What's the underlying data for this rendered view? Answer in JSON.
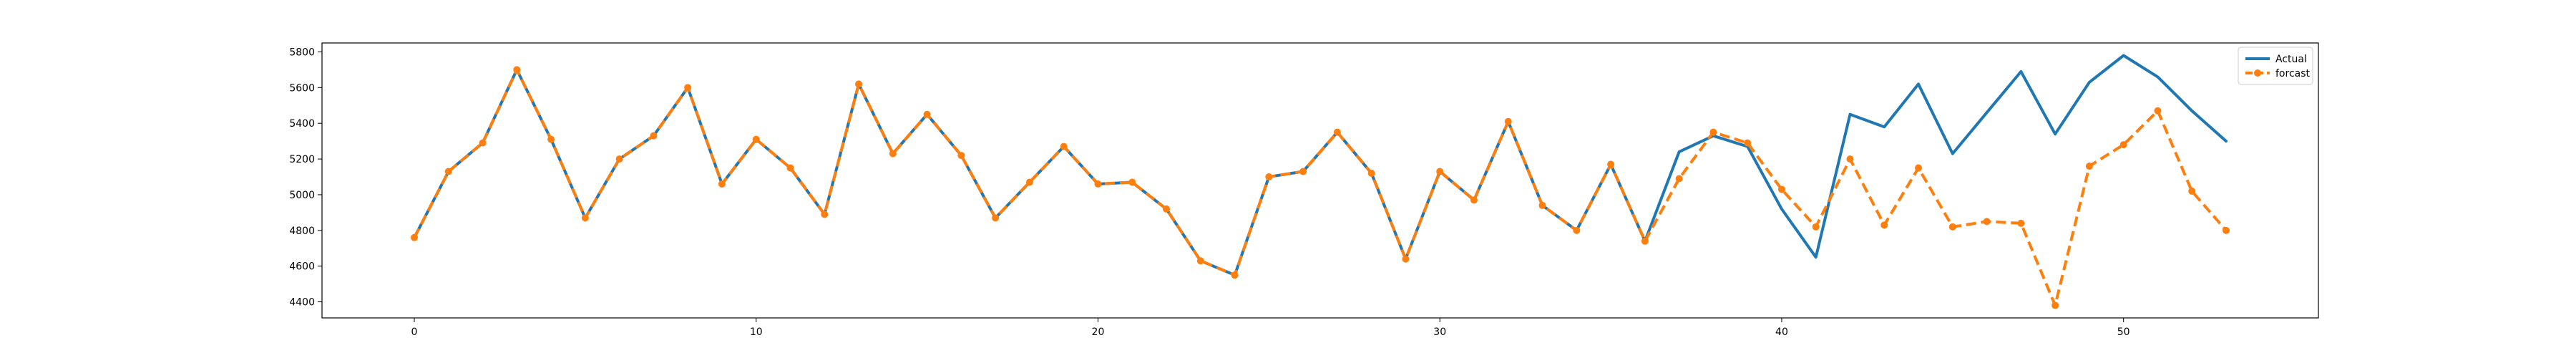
{
  "chart_data": {
    "type": "line",
    "x": [
      0,
      1,
      2,
      3,
      4,
      5,
      6,
      7,
      8,
      9,
      10,
      11,
      12,
      13,
      14,
      15,
      16,
      17,
      18,
      19,
      20,
      21,
      22,
      23,
      24,
      25,
      26,
      27,
      28,
      29,
      30,
      31,
      32,
      33,
      34,
      35,
      36,
      37,
      38,
      39,
      40,
      41,
      42,
      43,
      44,
      45,
      46,
      47,
      48,
      49,
      50,
      51,
      52,
      53
    ],
    "series": [
      {
        "name": "Actual",
        "color": "#1f77b4",
        "style": "solid",
        "values": [
          4760,
          5130,
          5290,
          5700,
          5310,
          4870,
          5200,
          5330,
          5600,
          5060,
          5310,
          5150,
          4890,
          5620,
          5230,
          5450,
          5220,
          4870,
          5070,
          5270,
          5060,
          5070,
          4920,
          4630,
          4550,
          5100,
          5130,
          5350,
          5120,
          4640,
          5130,
          4970,
          5410,
          4940,
          4800,
          5170,
          4740,
          5240,
          5330,
          5270,
          4920,
          4650,
          5450,
          5380,
          5620,
          5230,
          5460,
          5690,
          5340,
          5630,
          5780,
          5660,
          5470,
          5300
        ]
      },
      {
        "name": "forcast",
        "color": "#ff7f0e",
        "style": "dashed",
        "marker": "circle",
        "values": [
          4760,
          5130,
          5290,
          5700,
          5310,
          4870,
          5200,
          5330,
          5600,
          5060,
          5310,
          5150,
          4890,
          5620,
          5230,
          5450,
          5220,
          4870,
          5070,
          5270,
          5060,
          5070,
          4920,
          4630,
          4550,
          5100,
          5130,
          5350,
          5120,
          4640,
          5130,
          4970,
          5410,
          4940,
          4800,
          5170,
          4740,
          5090,
          5350,
          5290,
          5030,
          4820,
          5200,
          4830,
          5150,
          4820,
          4850,
          4840,
          4380,
          5160,
          5280,
          5470,
          5020,
          4800
        ]
      }
    ],
    "xticks": [
      0,
      10,
      20,
      30,
      40,
      50
    ],
    "yticks": [
      4400,
      4600,
      4800,
      5000,
      5200,
      5400,
      5600,
      5800
    ],
    "xlim": [
      -2.7,
      55.7
    ],
    "ylim": [
      4310,
      5850
    ],
    "grid": false,
    "legend_position": "top-right",
    "title": "",
    "xlabel": "",
    "ylabel": ""
  }
}
